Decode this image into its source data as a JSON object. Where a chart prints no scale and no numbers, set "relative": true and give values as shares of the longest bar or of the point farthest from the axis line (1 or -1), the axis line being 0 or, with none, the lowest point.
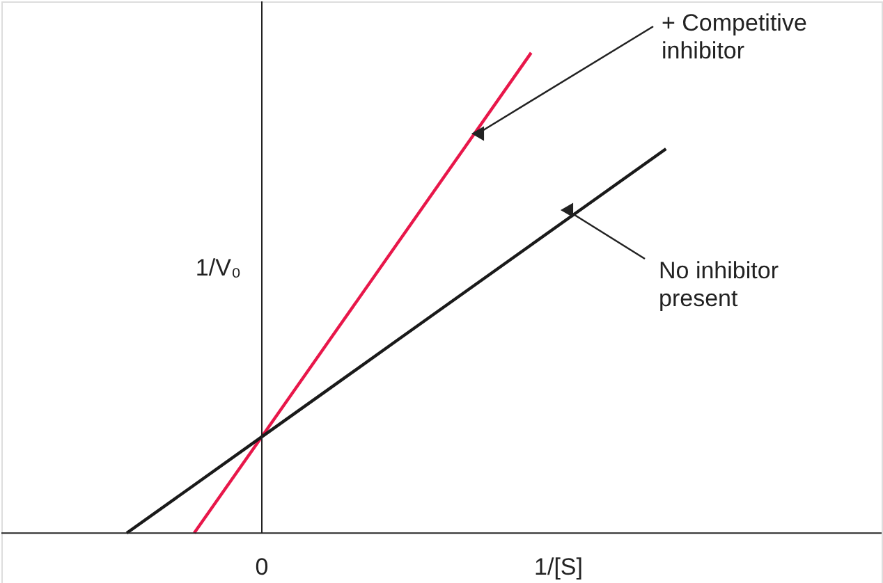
{
  "chart_data": {
    "type": "line",
    "relative": true,
    "xlabel": "1/[S]",
    "ylabel": "1/V₀",
    "legend": false,
    "line_style": "solid",
    "categories": [
      null,
      null,
      null,
      null,
      null,
      null,
      null,
      null,
      null
    ],
    "series": [
      {
        "color": "#e8174a",
        "values": [
          null,
          0,
          0.2,
          0.4,
          0.6,
          0.8,
          1.0,
          null,
          null
        ]
      },
      {
        "color": "#1a1a1a",
        "values": [
          0,
          0.1,
          0.2,
          0.3,
          0.4,
          0.5,
          0.6,
          0.7,
          0.8
        ]
      }
    ],
    "annotations": [
      "+ Competitive\ninhibitor",
      "No inhibitor\npresent",
      "0"
    ]
  }
}
